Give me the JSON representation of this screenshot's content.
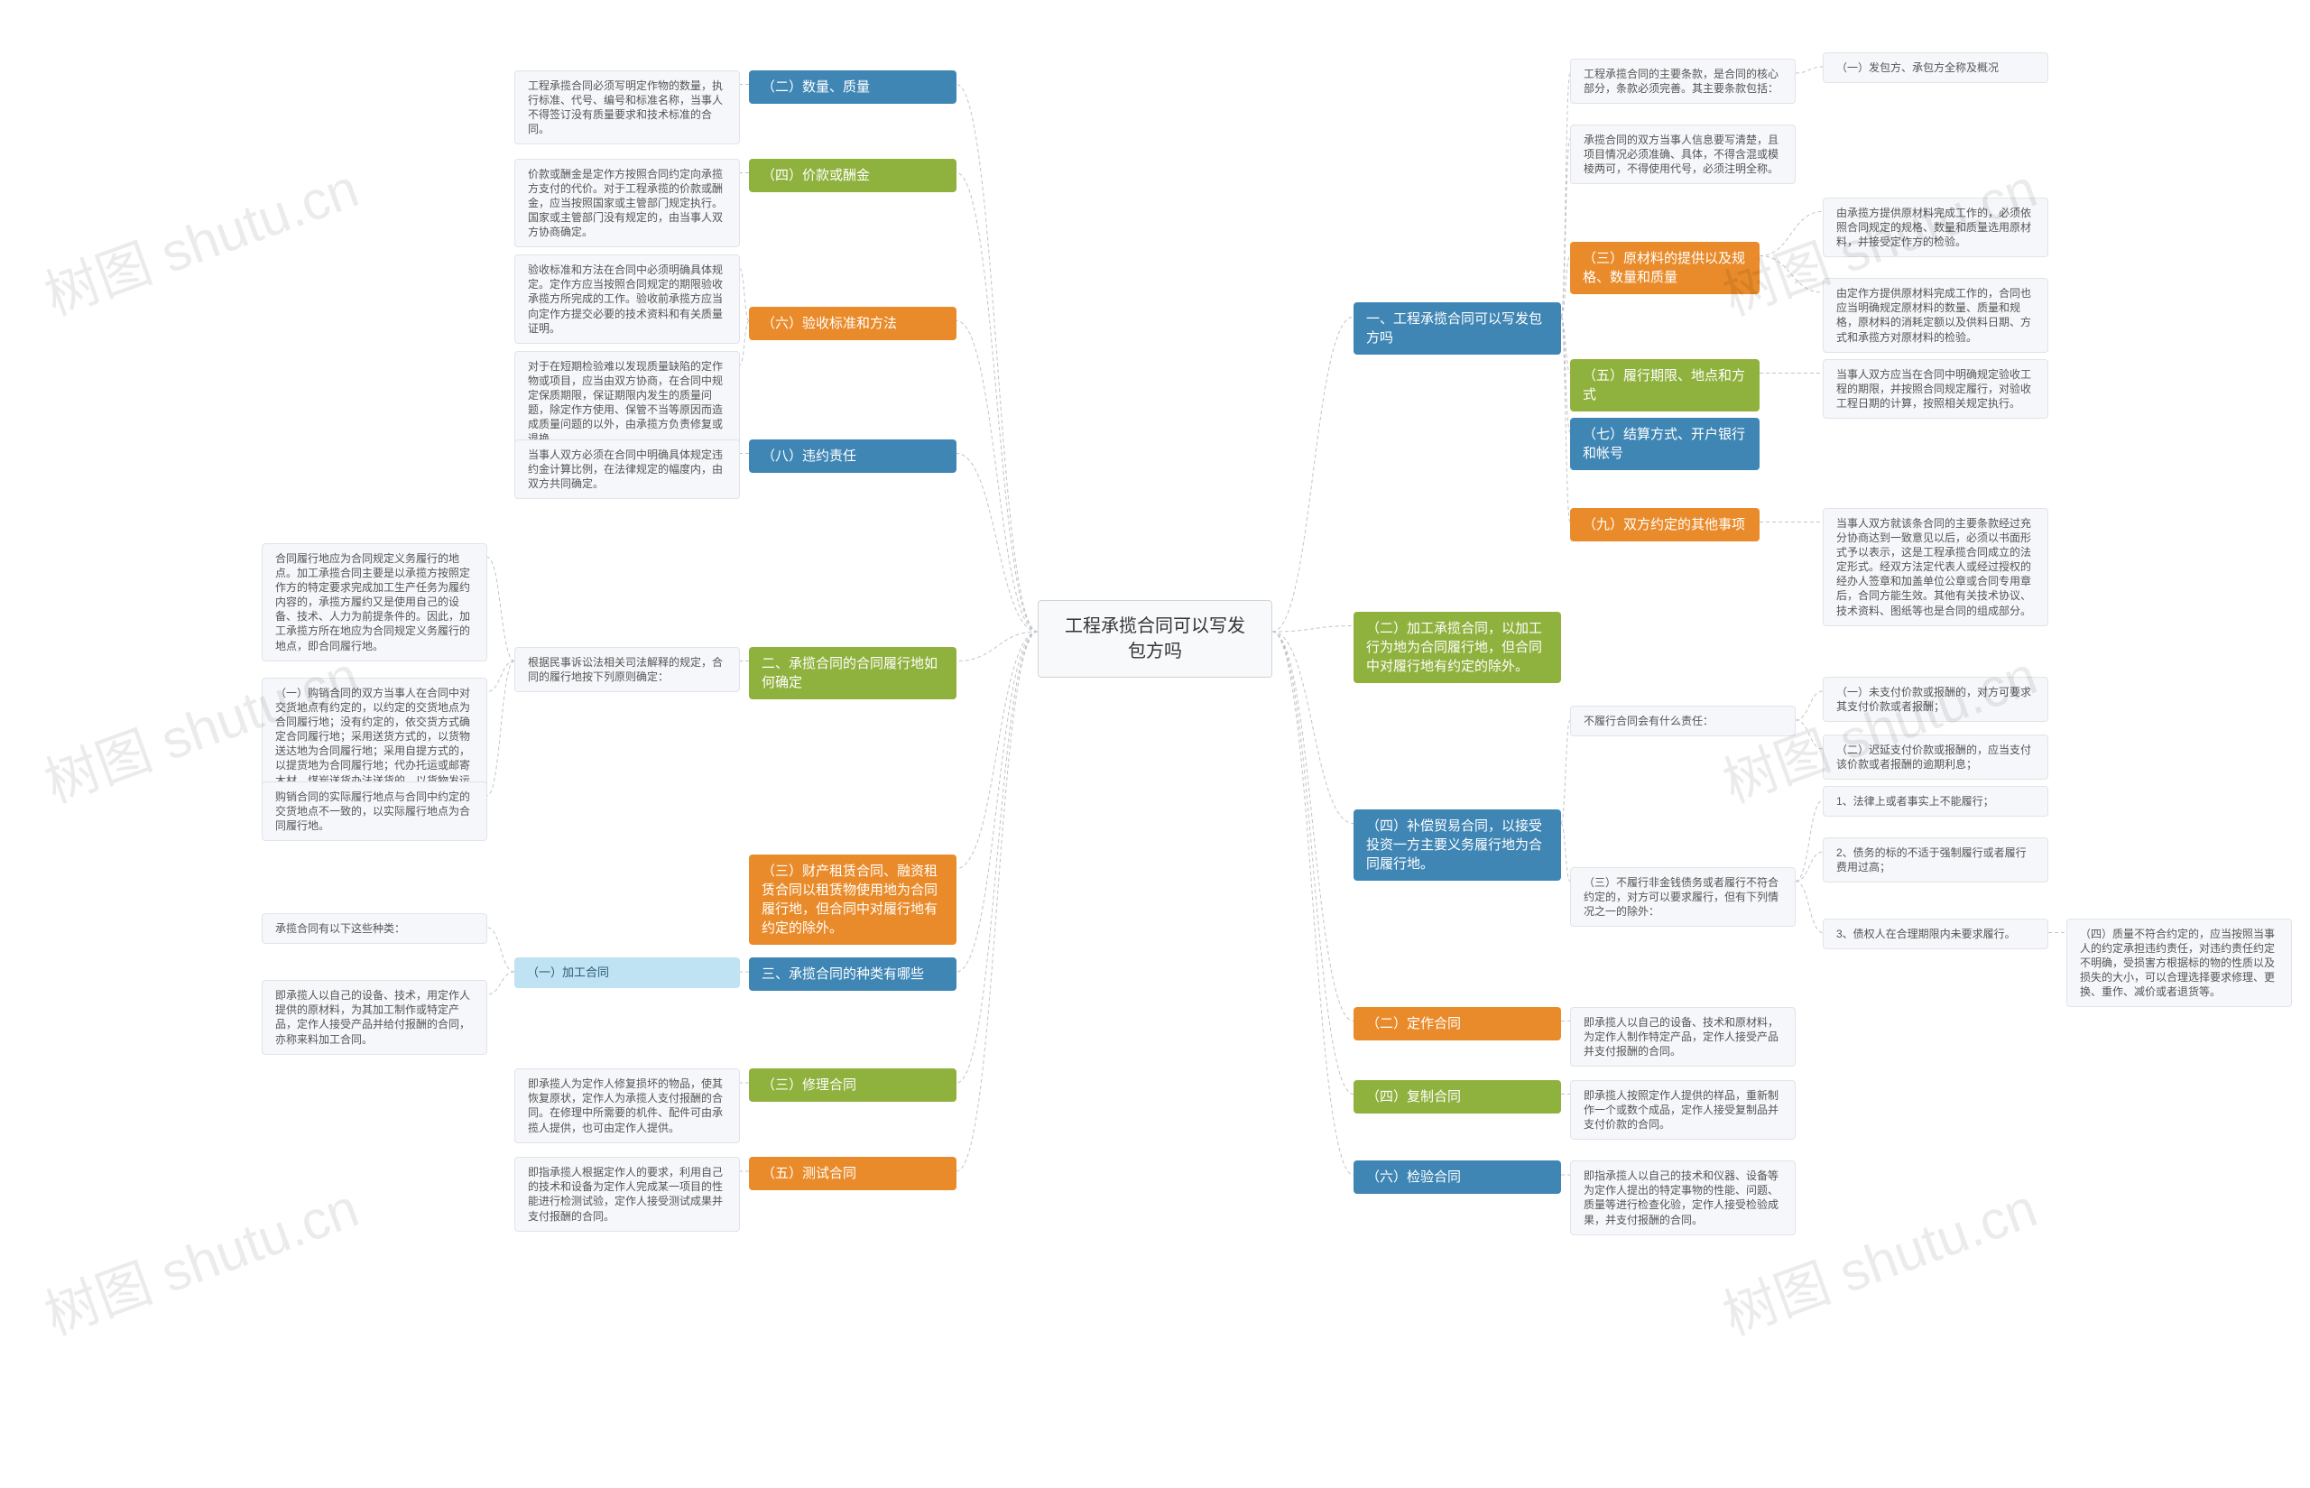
{
  "diagram": {
    "type": "mindmap",
    "background_color": "#ffffff",
    "connector_color": "#c0c4c8",
    "connector_dash": "4 3",
    "watermark_text": "树图 shutu.cn",
    "watermark_color": "rgba(0,0,0,0.08)",
    "watermark_fontsize": 60,
    "palette": {
      "blue": "#3f86b5",
      "green": "#8fb13d",
      "orange": "#e98b2a",
      "lightblue": "#bfe3f2",
      "leaf_bg": "#f5f7fa",
      "leaf_border": "#e0e4e8",
      "center_bg": "#f8f9fb",
      "center_border": "#d0d4d8"
    },
    "center": {
      "label": "工程承揽合同可以写发包方吗"
    },
    "right": [
      {
        "label": "一、工程承揽合同可以写发包方吗",
        "color": "blue",
        "children": [
          {
            "label": "工程承揽合同的主要条款，是合同的核心部分，条款必须完善。其主要条款包括：",
            "color": "leaf",
            "children": [
              {
                "label": "（一）发包方、承包方全称及概况",
                "color": "leaf"
              }
            ]
          },
          {
            "label": "承揽合同的双方当事人信息要写清楚，且项目情况必须准确、具体，不得含混或模棱两可，不得使用代号，必须注明全称。",
            "color": "leaf"
          },
          {
            "label": "（三）原材料的提供以及规格、数量和质量",
            "color": "orange",
            "children": [
              {
                "label": "由承揽方提供原材料完成工作的，必须依照合同规定的规格、数量和质量选用原材料，并接受定作方的检验。",
                "color": "leaf"
              },
              {
                "label": "由定作方提供原材料完成工作的，合同也应当明确规定原材料的数量、质量和规格，原材料的消耗定额以及供料日期、方式和承揽方对原材料的检验。",
                "color": "leaf"
              }
            ]
          },
          {
            "label": "（五）履行期限、地点和方式",
            "color": "green",
            "children": [
              {
                "label": "当事人双方应当在合同中明确规定验收工程的期限，并按照合同规定履行，对验收工程日期的计算，按照相关规定执行。",
                "color": "leaf"
              }
            ]
          },
          {
            "label": "（七）结算方式、开户银行和帐号",
            "color": "blue"
          },
          {
            "label": "（九）双方约定的其他事项",
            "color": "orange",
            "children": [
              {
                "label": "当事人双方就该条合同的主要条款经过充分协商达到一致意见以后，必须以书面形式予以表示，这是工程承揽合同成立的法定形式。经双方法定代表人或经过授权的经办人签章和加盖单位公章或合同专用章后，合同方能生效。其他有关技术协议、技术资料、图纸等也是合同的组成部分。",
                "color": "leaf"
              }
            ]
          }
        ]
      },
      {
        "label": "（二）加工承揽合同，以加工行为地为合同履行地，但合同中对履行地有约定的除外。",
        "color": "green"
      },
      {
        "label": "（四）补偿贸易合同，以接受投资一方主要义务履行地为合同履行地。",
        "color": "blue",
        "children": [
          {
            "label": "不履行合同会有什么责任：",
            "color": "leaf",
            "children": [
              {
                "label": "（一）未支付价款或报酬的，对方可要求其支付价款或者报酬；",
                "color": "leaf"
              },
              {
                "label": "（二）迟延支付价款或报酬的，应当支付该价款或者报酬的逾期利息；",
                "color": "leaf"
              }
            ]
          },
          {
            "label": "（三）不履行非金钱债务或者履行不符合约定的，对方可以要求履行，但有下列情况之一的除外：",
            "color": "leaf",
            "children": [
              {
                "label": "1、法律上或者事实上不能履行；",
                "color": "leaf"
              },
              {
                "label": "2、债务的标的不适于强制履行或者履行费用过高；",
                "color": "leaf"
              },
              {
                "label": "3、债权人在合理期限内未要求履行。",
                "color": "leaf",
                "children": [
                  {
                    "label": "（四）质量不符合约定的，应当按照当事人的约定承担违约责任，对违约责任约定不明确，受损害方根据标的物的性质以及损失的大小，可以合理选择要求修理、更换、重作、减价或者退货等。",
                    "color": "leaf"
                  }
                ]
              }
            ]
          }
        ]
      },
      {
        "label": "（二）定作合同",
        "color": "orange",
        "children": [
          {
            "label": "即承揽人以自己的设备、技术和原材料，为定作人制作特定产品，定作人接受产品并支付报酬的合同。",
            "color": "leaf"
          }
        ]
      },
      {
        "label": "（四）复制合同",
        "color": "green",
        "children": [
          {
            "label": "即承揽人按照定作人提供的样品，重新制作一个或数个成品，定作人接受复制品并支付价款的合同。",
            "color": "leaf"
          }
        ]
      },
      {
        "label": "（六）检验合同",
        "color": "blue",
        "children": [
          {
            "label": "即指承揽人以自己的技术和仪器、设备等为定作人提出的特定事物的性能、问题、质量等进行检查化验，定作人接受检验成果，并支付报酬的合同。",
            "color": "leaf"
          }
        ]
      }
    ],
    "left": [
      {
        "label": "（二）数量、质量",
        "color": "blue",
        "children": [
          {
            "label": "工程承揽合同必须写明定作物的数量，执行标准、代号、编号和标准名称，当事人不得签订没有质量要求和技术标准的合同。",
            "color": "leaf"
          }
        ]
      },
      {
        "label": "（四）价款或酬金",
        "color": "green",
        "children": [
          {
            "label": "价款或酬金是定作方按照合同约定向承揽方支付的代价。对于工程承揽的价款或酬金，应当按照国家或主管部门规定执行。国家或主管部门没有规定的，由当事人双方协商确定。",
            "color": "leaf"
          }
        ]
      },
      {
        "label": "（六）验收标准和方法",
        "color": "orange",
        "children": [
          {
            "label": "验收标准和方法在合同中必须明确具体规定。定作方应当按照合同规定的期限验收承揽方所完成的工作。验收前承揽方应当向定作方提交必要的技术资料和有关质量证明。",
            "color": "leaf"
          },
          {
            "label": "对于在短期检验难以发现质量缺陷的定作物或项目，应当由双方协商，在合同中规定保质期限，保证期限内发生的质量问题，除定作方使用、保管不当等原因而造成质量问题的以外，由承揽方负责修复或退换。",
            "color": "leaf"
          }
        ]
      },
      {
        "label": "（八）违约责任",
        "color": "blue",
        "children": [
          {
            "label": "当事人双方必须在合同中明确具体规定违约金计算比例，在法律规定的幅度内，由双方共同确定。",
            "color": "leaf"
          }
        ]
      },
      {
        "label": "二、承揽合同的合同履行地如何确定",
        "color": "green",
        "children": [
          {
            "label": "根据民事诉讼法相关司法解释的规定，合同的履行地按下列原则确定：",
            "color": "leaf",
            "children": [
              {
                "label": "合同履行地应为合同规定义务履行的地点。加工承揽合同主要是以承揽方按照定作方的特定要求完成加工生产任务为履约内容的，承揽方履约又是使用自己的设备、技术、人力为前提条件的。因此，加工承揽方所在地应为合同规定义务履行的地点，即合同履行地。",
                "color": "leaf"
              },
              {
                "label": "（一）购销合同的双方当事人在合同中对交货地点有约定的，以约定的交货地点为合同履行地；没有约定的，依交货方式确定合同履行地；采用送货方式的，以货物送达地为合同履行地；采用自提方式的，以提货地为合同履行地；代办托运或邮寄木材，煤炭送货办法送货的，以货物发运地为合同履行地。",
                "color": "leaf"
              },
              {
                "label": "购销合同的实际履行地点与合同中约定的交货地点不一致的，以实际履行地点为合同履行地。",
                "color": "leaf"
              }
            ]
          }
        ]
      },
      {
        "label": "（三）财产租赁合同、融资租赁合同以租赁物使用地为合同履行地，但合同中对履行地有约定的除外。",
        "color": "orange"
      },
      {
        "label": "三、承揽合同的种类有哪些",
        "color": "blue",
        "children": [
          {
            "label": "（一）加工合同",
            "color": "lb",
            "children": [
              {
                "label": "承揽合同有以下这些种类：",
                "color": "leaf"
              },
              {
                "label": "即承揽人以自己的设备、技术，用定作人提供的原材料，为其加工制作或特定产品，定作人接受产品并给付报酬的合同，亦称来料加工合同。",
                "color": "leaf"
              }
            ]
          }
        ]
      },
      {
        "label": "（三）修理合同",
        "color": "green",
        "children": [
          {
            "label": "即承揽人为定作人修复损坏的物品，使其恢复原状，定作人为承揽人支付报酬的合同。在修理中所需要的机件、配件可由承揽人提供，也可由定作人提供。",
            "color": "leaf"
          }
        ]
      },
      {
        "label": "（五）测试合同",
        "color": "orange",
        "children": [
          {
            "label": "即指承揽人根据定作人的要求，利用自己的技术和设备为定作人完成某一项目的性能进行检测试验，定作人接受测试成果并支付报酬的合同。",
            "color": "leaf"
          }
        ]
      }
    ]
  }
}
